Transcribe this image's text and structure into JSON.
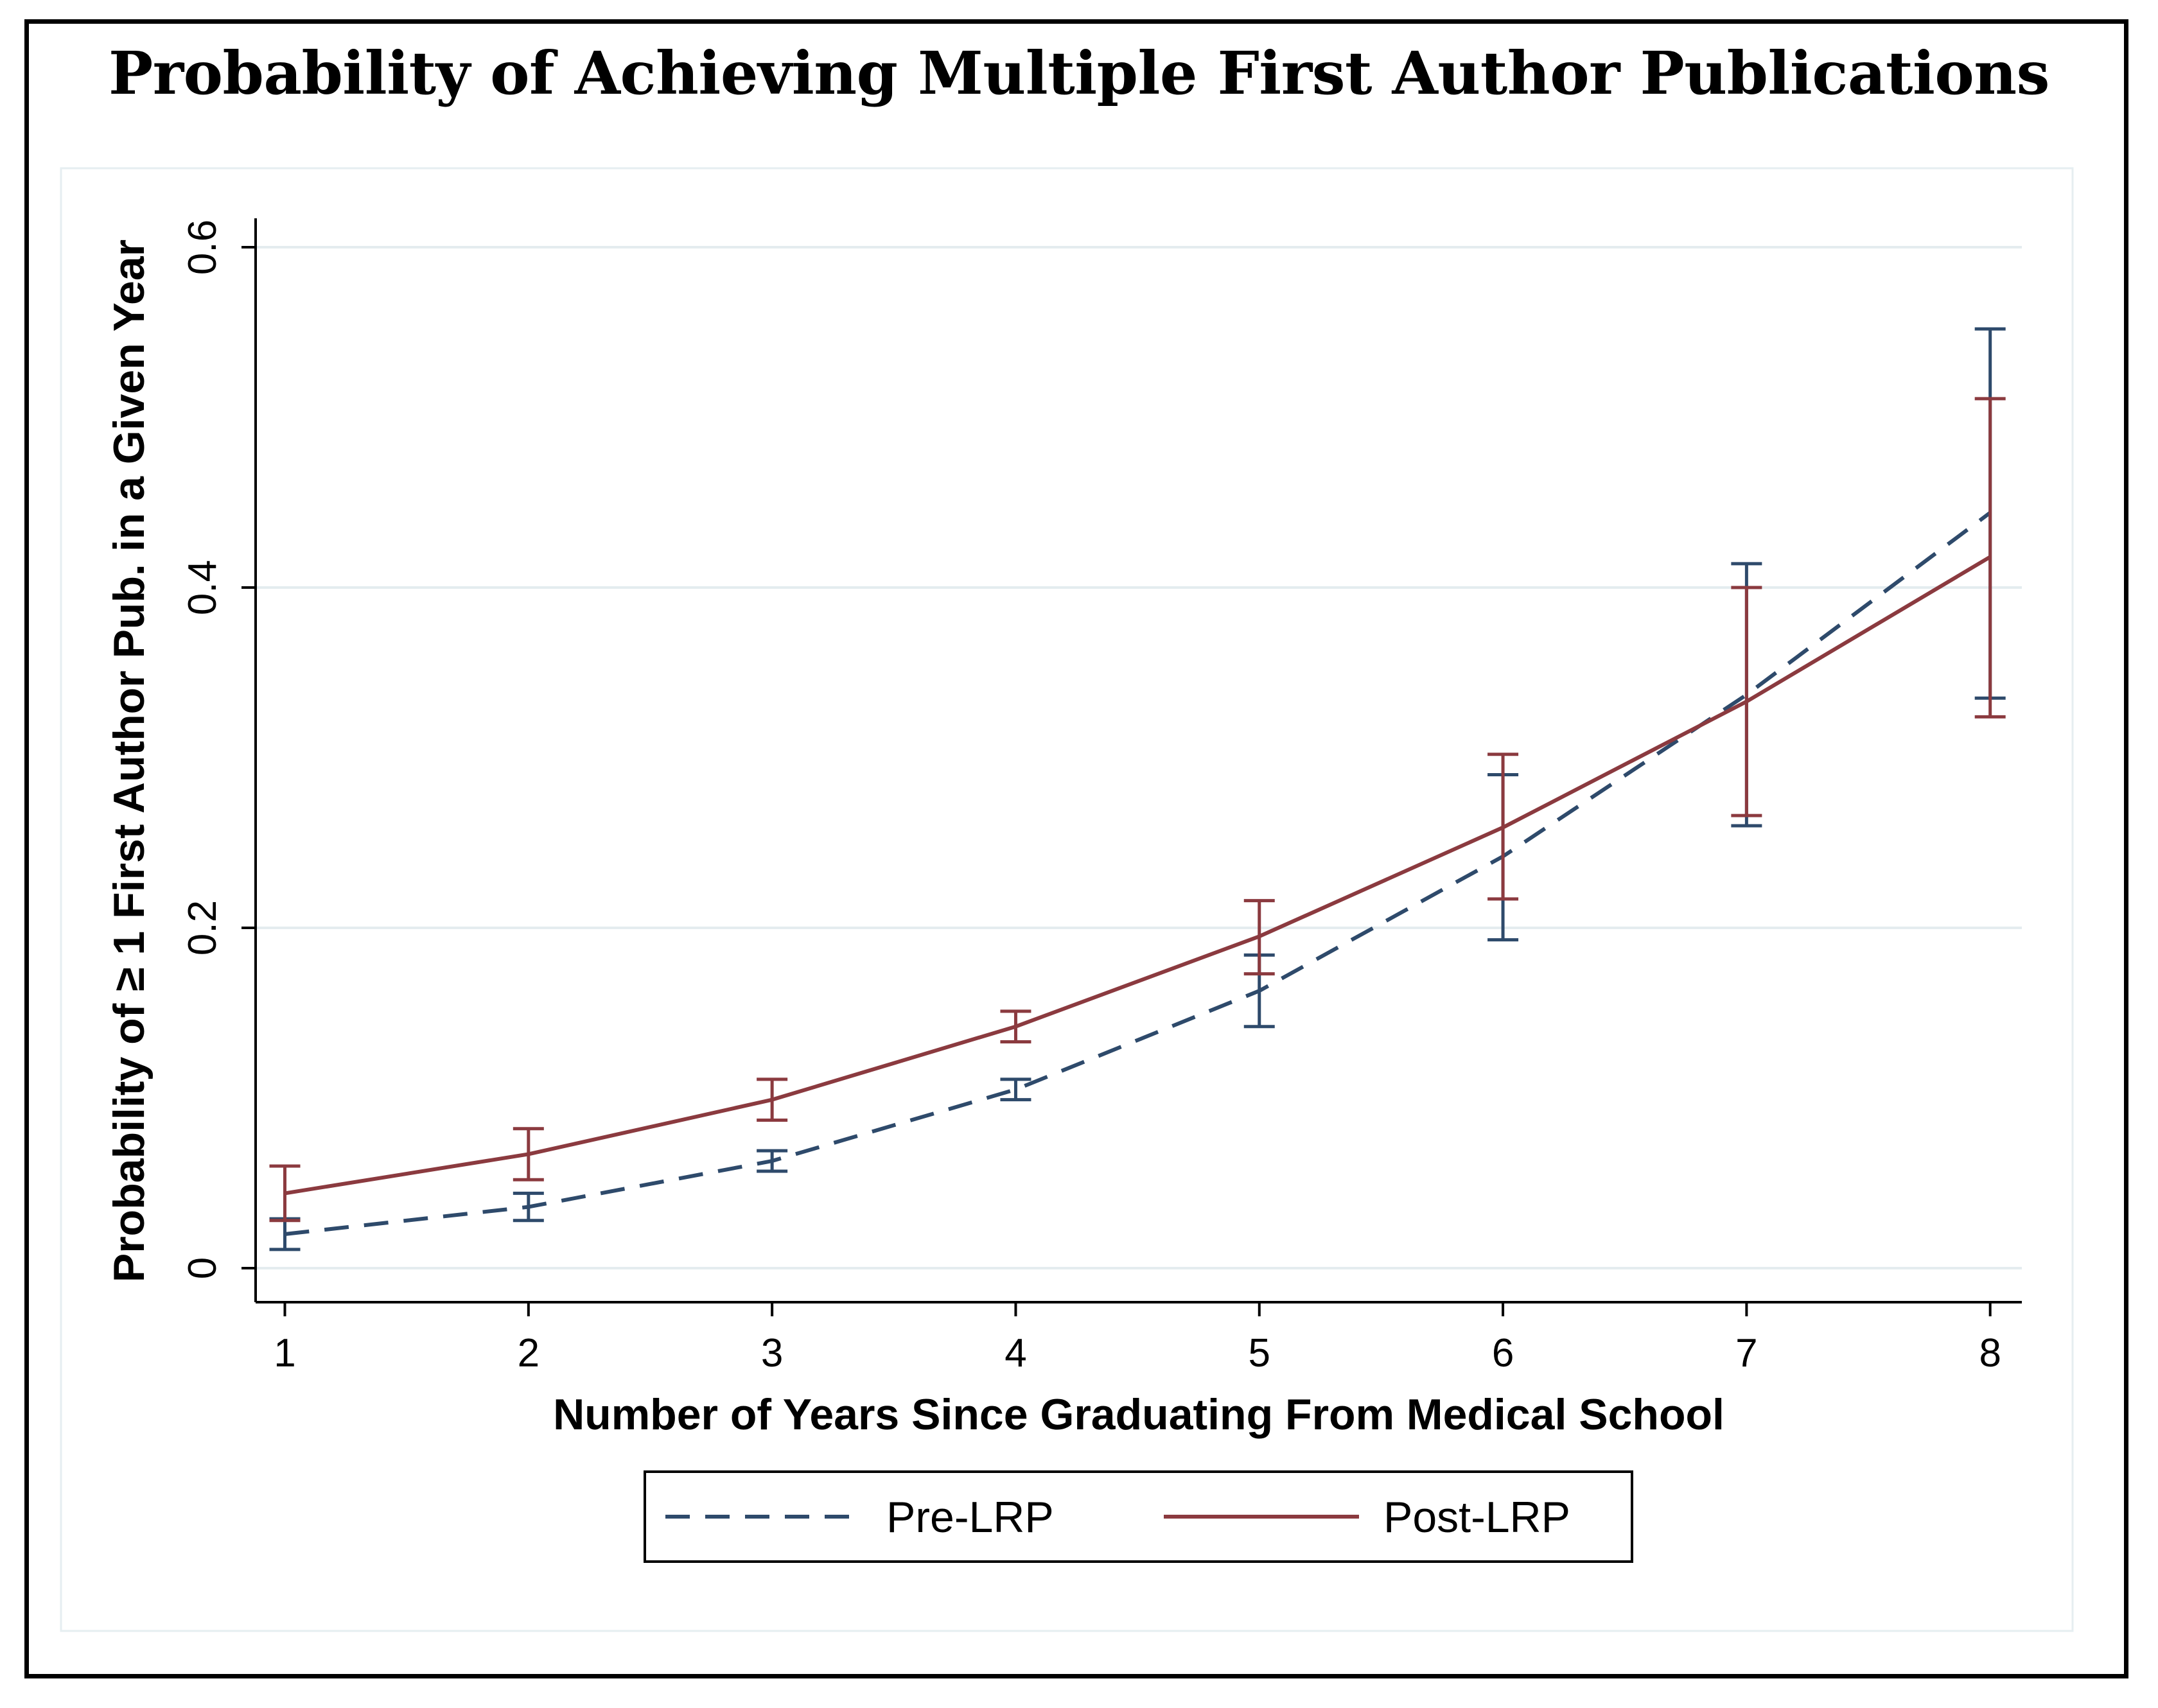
{
  "chart_data": {
    "type": "line",
    "title": "Probability of Achieving Multiple First Author Publications",
    "xlabel": "Number of Years Since Graduating From Medical School",
    "ylabel": "Probability of ≥ 1 First Author Pub. in a Given Year",
    "x": [
      1,
      2,
      3,
      4,
      5,
      6,
      7,
      8
    ],
    "x_ticks": [
      "1",
      "2",
      "3",
      "4",
      "5",
      "6",
      "7",
      "8"
    ],
    "y_ticks": [
      "0",
      "0.2",
      "0.4",
      "0.6"
    ],
    "xlim": [
      0.88,
      8.13
    ],
    "ylim": [
      -0.02,
      0.617
    ],
    "grid": true,
    "legend_position": "bottom",
    "series": [
      {
        "name": "Pre-LRP",
        "color": "#2e4a6b",
        "style": "dashed",
        "values": [
          0.02,
          0.036,
          0.063,
          0.105,
          0.163,
          0.242,
          0.337,
          0.444
        ],
        "ci_low": [
          0.011,
          0.028,
          0.057,
          0.099,
          0.142,
          0.193,
          0.26,
          0.335
        ],
        "ci_high": [
          0.029,
          0.044,
          0.069,
          0.111,
          0.184,
          0.29,
          0.414,
          0.552
        ]
      },
      {
        "name": "Post-LRP",
        "color": "#8b3a3f",
        "style": "solid",
        "values": [
          0.044,
          0.067,
          0.099,
          0.142,
          0.195,
          0.259,
          0.333,
          0.418
        ],
        "ci_low": [
          0.028,
          0.052,
          0.087,
          0.133,
          0.173,
          0.217,
          0.266,
          0.324
        ],
        "ci_high": [
          0.06,
          0.082,
          0.111,
          0.151,
          0.216,
          0.302,
          0.4,
          0.511
        ]
      }
    ]
  }
}
